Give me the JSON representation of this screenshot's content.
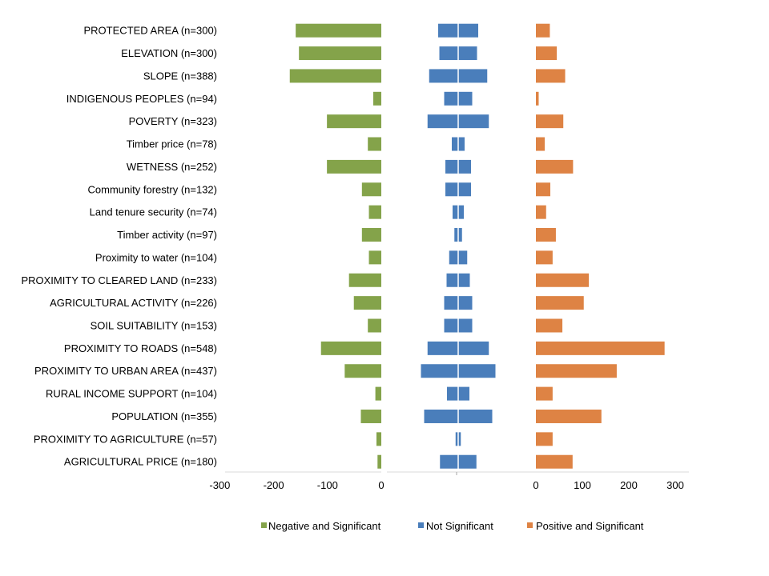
{
  "chart_data": {
    "type": "bar",
    "orientation": "horizontal",
    "categories": [
      "PROTECTED AREA (n=300)",
      "ELEVATION (n=300)",
      "SLOPE (n=388)",
      "INDIGENOUS PEOPLES (n=94)",
      "POVERTY (n=323)",
      "Timber price (n=78)",
      "WETNESS (n=252)",
      "Community forestry (n=132)",
      "Land tenure security (n=74)",
      "Timber activity (n=97)",
      "Proximity to water (n=104)",
      "PROXIMITY TO CLEARED LAND (n=233)",
      "AGRICULTURAL ACTIVITY (n=226)",
      "SOIL SUITABILITY (n=153)",
      "PROXIMITY TO ROADS (n=548)",
      "PROXIMITY TO URBAN AREA (n=437)",
      "RURAL INCOME SUPPORT (n=104)",
      "POPULATION (n=355)",
      "PROXIMITY TO AGRICULTURE (n=57)",
      "AGRICULTURAL PRICE (n=180)"
    ],
    "series": [
      {
        "name": "Negative and Significant",
        "color": "#84A34A",
        "values": [
          -159,
          -153,
          -170,
          -15,
          -101,
          -25,
          -101,
          -36,
          -23,
          -36,
          -23,
          -60,
          -51,
          -25,
          -112,
          -68,
          -11,
          -38,
          -9,
          -7
        ]
      },
      {
        "name": "Not Significant",
        "color": "#4A7EBB",
        "values": [
          100,
          94,
          145,
          70,
          153,
          32,
          64,
          64,
          28,
          19,
          45,
          58,
          70,
          70,
          153,
          186,
          56,
          170,
          13,
          91
        ]
      },
      {
        "name": "Positive and Significant",
        "color": "#DE8344",
        "values": [
          30,
          45,
          63,
          6,
          59,
          19,
          80,
          31,
          22,
          43,
          36,
          114,
          103,
          57,
          277,
          174,
          36,
          141,
          36,
          79
        ]
      }
    ],
    "left_axis": {
      "ticks": [
        -300,
        -200,
        -100,
        0
      ],
      "range": [
        -300,
        0
      ]
    },
    "right_axis": {
      "ticks": [
        0,
        100,
        200,
        300
      ],
      "range": [
        0,
        300
      ]
    },
    "legend": {
      "position": "bottom"
    },
    "grid": false
  }
}
